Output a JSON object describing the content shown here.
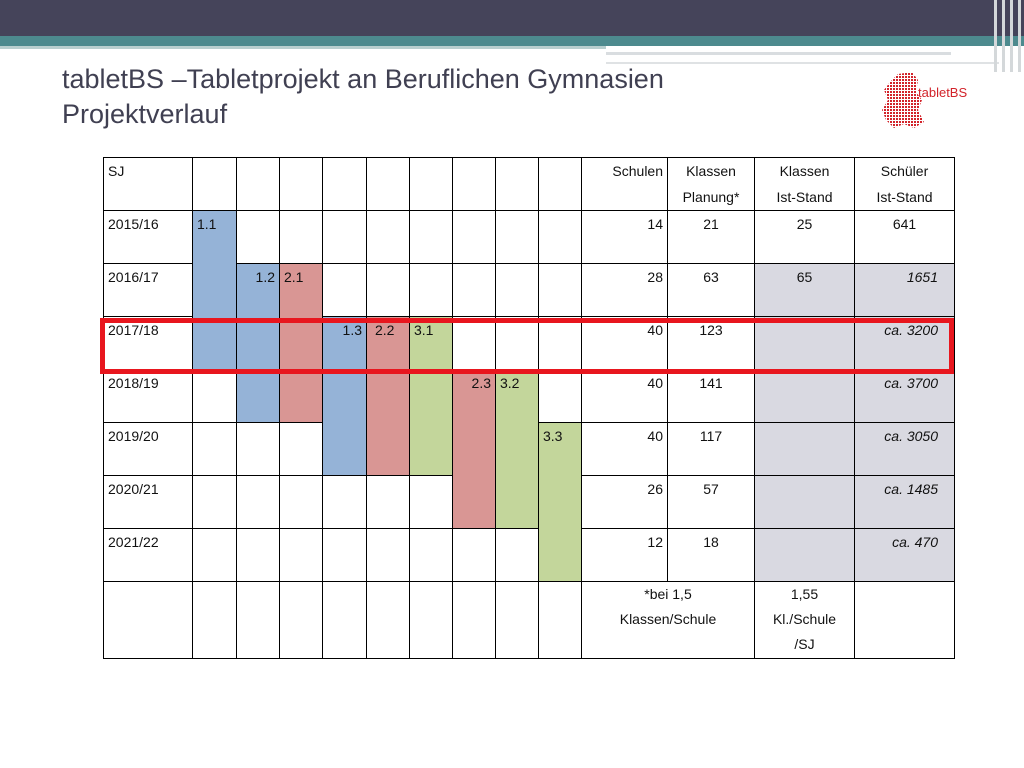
{
  "title": {
    "line1": "tabletBS –Tabletprojekt an Beruflichen Gymnasien",
    "line2": "Projektverlauf"
  },
  "logo": {
    "text": "tabletBS"
  },
  "colors": {
    "blue": "#95b3d7",
    "red": "#d99694",
    "green": "#c3d69b",
    "gray": "#d9d9e1",
    "highlight": "#e8161e"
  },
  "table": {
    "headers": {
      "sj": "SJ",
      "schulen": "Schulen",
      "klassen_planung_1": "Klassen",
      "klassen_planung_2": "Planung*",
      "klassen_ist_1": "Klassen",
      "klassen_ist_2": "Ist-Stand",
      "schueler_1": "Schüler",
      "schueler_2": "Ist-Stand"
    },
    "phases": [
      "1.1",
      "1.2",
      "2.1",
      "1.3",
      "2.2",
      "3.1",
      "2.3",
      "3.2",
      "3.3"
    ],
    "rows": [
      {
        "sj": "2015/16",
        "schulen": "14",
        "planung": "21",
        "ist": "25",
        "schueler": "641"
      },
      {
        "sj": "2016/17",
        "schulen": "28",
        "planung": "63",
        "ist": "65",
        "schueler": "1651"
      },
      {
        "sj": "2017/18",
        "schulen": "40",
        "planung": "123",
        "ist": "",
        "schueler": "ca. 3200"
      },
      {
        "sj": "2018/19",
        "schulen": "40",
        "planung": "141",
        "ist": "",
        "schueler": "ca. 3700"
      },
      {
        "sj": "2019/20",
        "schulen": "40",
        "planung": "117",
        "ist": "",
        "schueler": "ca. 3050"
      },
      {
        "sj": "2020/21",
        "schulen": "26",
        "planung": "57",
        "ist": "",
        "schueler": "ca. 1485"
      },
      {
        "sj": "2021/22",
        "schulen": "12",
        "planung": "18",
        "ist": "",
        "schueler": "ca. 470"
      }
    ],
    "footnote": {
      "planung_1": "*bei 1,5",
      "planung_2": "Klassen/Schule",
      "ist_1": "1,55",
      "ist_2": "Kl./Schule",
      "ist_3": "/SJ"
    }
  }
}
